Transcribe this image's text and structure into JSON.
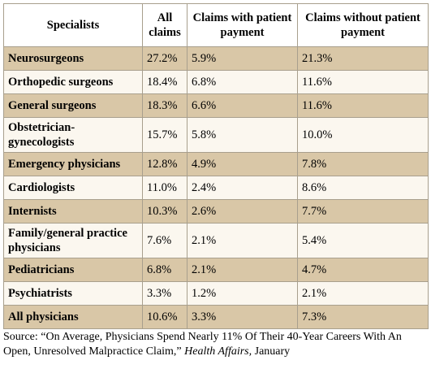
{
  "table": {
    "headers": {
      "specialists": "Specialists",
      "all_claims": "All claims",
      "with_payment": "Claims with patient payment",
      "without_payment": "Claims without patient payment"
    },
    "rows": [
      {
        "specialist": "Neurosurgeons",
        "all": "27.2%",
        "with": "5.9%",
        "without": "21.3%"
      },
      {
        "specialist": "Orthopedic surgeons",
        "all": "18.4%",
        "with": "6.8%",
        "without": "11.6%"
      },
      {
        "specialist": "General surgeons",
        "all": "18.3%",
        "with": "6.6%",
        "without": "11.6%"
      },
      {
        "specialist": "Obstetrician-gynecologists",
        "all": "15.7%",
        "with": "5.8%",
        "without": "10.0%"
      },
      {
        "specialist": "Emergency physicians",
        "all": "12.8%",
        "with": "4.9%",
        "without": "7.8%"
      },
      {
        "specialist": "Cardiologists",
        "all": "11.0%",
        "with": "2.4%",
        "without": "8.6%"
      },
      {
        "specialist": "Internists",
        "all": "10.3%",
        "with": "2.6%",
        "without": "7.7%"
      },
      {
        "specialist": "Family/general practice physicians",
        "all": "7.6%",
        "with": "2.1%",
        "without": "5.4%"
      },
      {
        "specialist": "Pediatricians",
        "all": "6.8%",
        "with": "2.1%",
        "without": "4.7%"
      },
      {
        "specialist": "Psychiatrists",
        "all": "3.3%",
        "with": "1.2%",
        "without": "2.1%"
      },
      {
        "specialist": "All physicians",
        "all": "10.6%",
        "with": "3.3%",
        "without": "7.3%"
      }
    ]
  },
  "source": {
    "prefix": "Source: “On Average, Physicians Spend Nearly 11% Of Their 40-Year Careers With An Open, Unresolved Malpractice Claim,” ",
    "journal": "Health Affairs,",
    "suffix": " January"
  }
}
